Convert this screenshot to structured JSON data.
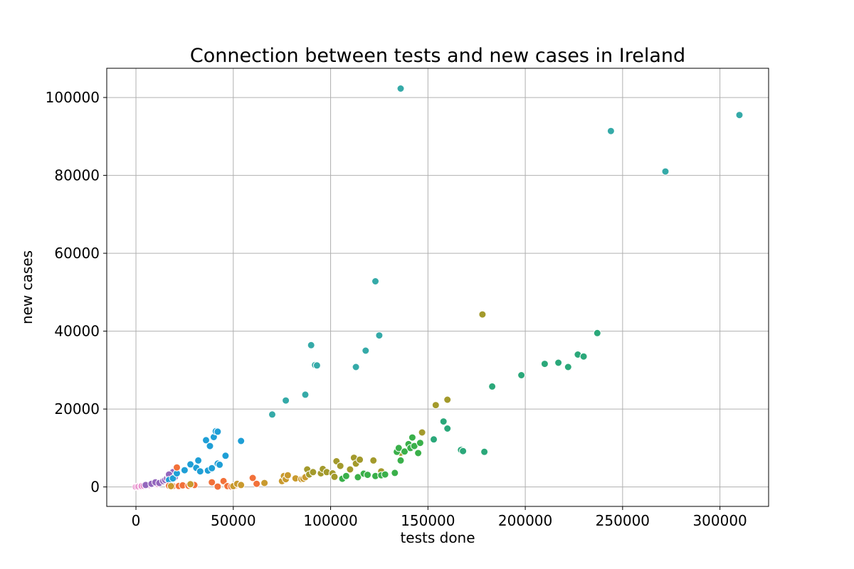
{
  "chart_data": {
    "type": "scatter",
    "title": "Connection between tests and new cases in Ireland",
    "xlabel": "tests done",
    "ylabel": "new cases",
    "xlim": [
      -15000,
      325000
    ],
    "ylim": [
      -5000,
      107500
    ],
    "xticks": [
      0,
      50000,
      100000,
      150000,
      200000,
      250000,
      300000
    ],
    "xtick_labels": [
      "0",
      "50000",
      "100000",
      "150000",
      "200000",
      "250000",
      "300000"
    ],
    "yticks": [
      0,
      20000,
      40000,
      60000,
      80000,
      100000
    ],
    "ytick_labels": [
      "0",
      "20000",
      "40000",
      "60000",
      "80000",
      "100000"
    ],
    "grid": true,
    "legend": "none",
    "series": [
      {
        "color": "#e377c2",
        "points": [
          [
            0,
            0
          ],
          [
            800,
            50
          ],
          [
            1500,
            100
          ],
          [
            2500,
            150
          ],
          [
            3000,
            250
          ],
          [
            4000,
            300
          ],
          [
            5000,
            400
          ],
          [
            5500,
            600
          ],
          [
            6000,
            450
          ],
          [
            7000,
            500
          ],
          [
            8000,
            700
          ],
          [
            9000,
            900
          ],
          [
            10000,
            1000
          ],
          [
            11000,
            800
          ],
          [
            12000,
            1100
          ]
        ]
      },
      {
        "color": "#9467bd",
        "points": [
          [
            5000,
            500
          ],
          [
            8000,
            800
          ],
          [
            10000,
            1200
          ],
          [
            12000,
            1000
          ],
          [
            14000,
            1500
          ],
          [
            15000,
            1800
          ],
          [
            16000,
            2200
          ],
          [
            17000,
            2800
          ],
          [
            18000,
            3500
          ],
          [
            19000,
            3800
          ],
          [
            20000,
            2500
          ],
          [
            17000,
            3200
          ]
        ]
      },
      {
        "color": "#1f9fd6",
        "points": [
          [
            17000,
            1800
          ],
          [
            19000,
            2200
          ],
          [
            21000,
            3500
          ],
          [
            25000,
            4300
          ],
          [
            28000,
            5800
          ],
          [
            31000,
            4900
          ],
          [
            32000,
            6800
          ],
          [
            33000,
            4000
          ],
          [
            36000,
            12000
          ],
          [
            37000,
            4200
          ],
          [
            38000,
            10500
          ],
          [
            39000,
            4800
          ],
          [
            40000,
            12800
          ],
          [
            41000,
            14300
          ],
          [
            42000,
            14200
          ],
          [
            42000,
            6000
          ],
          [
            43000,
            5700
          ],
          [
            46000,
            8000
          ],
          [
            54000,
            11800
          ]
        ]
      },
      {
        "color": "#f2713a",
        "points": [
          [
            17000,
            300
          ],
          [
            19000,
            200
          ],
          [
            21000,
            5000
          ],
          [
            22000,
            250
          ],
          [
            24000,
            400
          ],
          [
            27000,
            300
          ],
          [
            28000,
            600
          ],
          [
            30000,
            500
          ],
          [
            39000,
            1200
          ],
          [
            42000,
            100
          ],
          [
            45000,
            1500
          ],
          [
            47000,
            200
          ],
          [
            49000,
            100
          ],
          [
            51000,
            300
          ],
          [
            53000,
            600
          ],
          [
            60000,
            2300
          ],
          [
            62000,
            800
          ]
        ]
      },
      {
        "color": "#c99a2e",
        "points": [
          [
            18000,
            200
          ],
          [
            28000,
            700
          ],
          [
            50000,
            200
          ],
          [
            52000,
            800
          ],
          [
            54000,
            500
          ],
          [
            66000,
            1000
          ],
          [
            75000,
            1500
          ],
          [
            76000,
            2800
          ],
          [
            77000,
            2000
          ],
          [
            78000,
            3000
          ],
          [
            82000,
            2200
          ],
          [
            85000,
            2000
          ],
          [
            86000,
            2100
          ],
          [
            87000,
            2500
          ]
        ]
      },
      {
        "color": "#a39a2c",
        "points": [
          [
            88000,
            4500
          ],
          [
            89000,
            3200
          ],
          [
            91000,
            3800
          ],
          [
            95000,
            3500
          ],
          [
            96000,
            4600
          ],
          [
            98000,
            3800
          ],
          [
            101000,
            3500
          ],
          [
            102000,
            2600
          ],
          [
            103000,
            6600
          ],
          [
            105000,
            5400
          ],
          [
            110000,
            4500
          ],
          [
            112000,
            7500
          ],
          [
            113000,
            6000
          ],
          [
            115000,
            7000
          ],
          [
            122000,
            6800
          ],
          [
            126000,
            4000
          ],
          [
            136000,
            8800
          ],
          [
            154000,
            21000
          ],
          [
            160000,
            22400
          ],
          [
            178000,
            44300
          ],
          [
            147000,
            14000
          ]
        ]
      },
      {
        "color": "#3ab04a",
        "points": [
          [
            106000,
            2100
          ],
          [
            108000,
            2800
          ],
          [
            114000,
            2500
          ],
          [
            117000,
            3400
          ],
          [
            119000,
            3100
          ],
          [
            123000,
            2800
          ],
          [
            126000,
            3000
          ],
          [
            128000,
            3200
          ],
          [
            133000,
            3600
          ],
          [
            134000,
            9000
          ],
          [
            135000,
            10000
          ],
          [
            136000,
            6800
          ],
          [
            138000,
            9100
          ],
          [
            140000,
            11000
          ],
          [
            141000,
            10000
          ],
          [
            142000,
            12700
          ],
          [
            143000,
            10500
          ],
          [
            145000,
            8700
          ],
          [
            146000,
            11300
          ]
        ]
      },
      {
        "color": "#2ba87a",
        "points": [
          [
            153000,
            12200
          ],
          [
            158000,
            16800
          ],
          [
            160000,
            15000
          ],
          [
            167000,
            9500
          ],
          [
            168000,
            9200
          ],
          [
            179000,
            9000
          ],
          [
            183000,
            25800
          ],
          [
            198000,
            28700
          ],
          [
            210000,
            31600
          ],
          [
            217000,
            31900
          ],
          [
            222000,
            30800
          ],
          [
            227000,
            34000
          ],
          [
            230000,
            33500
          ],
          [
            237000,
            39500
          ]
        ]
      },
      {
        "color": "#35aaa8",
        "points": [
          [
            70000,
            18600
          ],
          [
            77000,
            22200
          ],
          [
            87000,
            23700
          ],
          [
            90000,
            36400
          ],
          [
            92000,
            31300
          ],
          [
            93000,
            31200
          ],
          [
            113000,
            30800
          ],
          [
            118000,
            35000
          ],
          [
            123000,
            52800
          ],
          [
            125000,
            38900
          ],
          [
            136000,
            102300
          ],
          [
            244000,
            91400
          ],
          [
            272000,
            81000
          ],
          [
            310000,
            95500
          ]
        ]
      }
    ]
  }
}
